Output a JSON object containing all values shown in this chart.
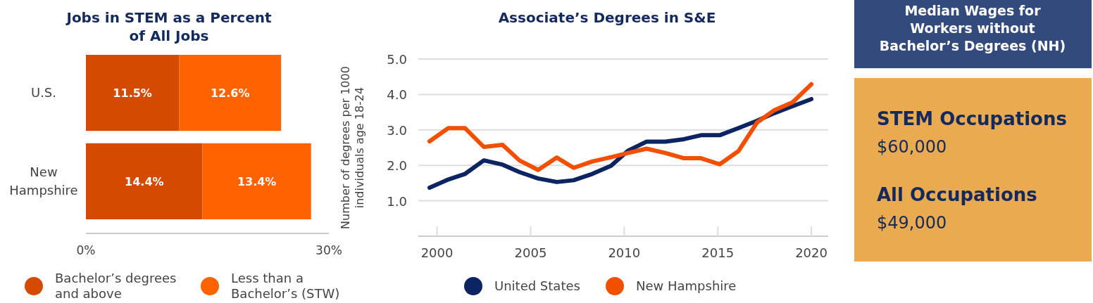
{
  "chart_data": [
    {
      "type": "bar",
      "title": "Jobs in STEM as a Percent of All Jobs",
      "orientation": "horizontal",
      "stacked": true,
      "categories": [
        "U.S.",
        "New Hampshire"
      ],
      "series": [
        {
          "name": "Bachelor’s degrees and above",
          "color": "#d44a00",
          "values": [
            11.5,
            14.4
          ],
          "value_labels": [
            "11.5%",
            "14.4%"
          ]
        },
        {
          "name": "Less than a Bachelor’s (STW)",
          "color": "#ff6200",
          "values": [
            12.6,
            13.4
          ],
          "value_labels": [
            "12.6%",
            "13.4%"
          ]
        }
      ],
      "xlim": [
        0,
        30
      ],
      "xticks": [
        {
          "value": 0,
          "label": "0%"
        },
        {
          "value": 30,
          "label": "30%"
        }
      ],
      "legend": "bottom"
    },
    {
      "type": "line",
      "title": "Associate’s Degrees in S&E",
      "ylabel": "Number of degrees per 1000 individuals age 18-24",
      "x": [
        1999.6,
        2000.6,
        2001.5,
        2002.5,
        2003.5,
        2004.4,
        2005.4,
        2006.4,
        2007.3,
        2008.3,
        2009.3,
        2010.2,
        2011.2,
        2012.2,
        2013.2,
        2014.1,
        2015.1,
        2016.1,
        2017.1,
        2018.0,
        2019.0,
        2020.0
      ],
      "series": [
        {
          "name": "United States",
          "color": "#0c2461",
          "values": [
            1.37,
            1.6,
            1.76,
            2.14,
            2.02,
            1.81,
            1.63,
            1.53,
            1.58,
            1.76,
            1.99,
            2.41,
            2.67,
            2.67,
            2.74,
            2.85,
            2.85,
            3.05,
            3.26,
            3.47,
            3.67,
            3.87
          ]
        },
        {
          "name": "New Hampshire",
          "color": "#f24f00",
          "values": [
            2.68,
            3.05,
            3.05,
            2.52,
            2.58,
            2.14,
            1.87,
            2.22,
            1.93,
            2.11,
            2.23,
            2.35,
            2.47,
            2.35,
            2.2,
            2.2,
            2.03,
            2.4,
            3.21,
            3.55,
            3.78,
            4.29
          ]
        }
      ],
      "xlim": [
        1999.0,
        2020.9
      ],
      "xticks": [
        2000,
        2005,
        2010,
        2015,
        2020
      ],
      "ylim": [
        0,
        5.0
      ],
      "yticks": [
        {
          "value": 1,
          "label": "1.0"
        },
        {
          "value": 2,
          "label": "2.0"
        },
        {
          "value": 3,
          "label": "3.0"
        },
        {
          "value": 4,
          "label": "4.0"
        },
        {
          "value": 5,
          "label": "5.0"
        }
      ],
      "grid": "y",
      "legend": "bottom",
      "marker": "none",
      "line_style": "solid"
    },
    {
      "type": "other",
      "title": "Median Wages for Workers without Bachelor’s Degrees (NH)",
      "annotations": [
        "STEM Occupations",
        "$60,000",
        "All Occupations",
        "$49,000"
      ]
    }
  ]
}
